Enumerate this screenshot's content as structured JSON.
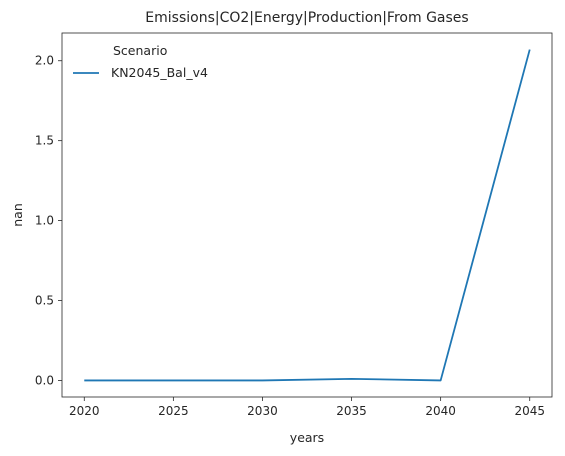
{
  "chart_data": {
    "type": "line",
    "title": "Emissions|CO2|Energy|Production|From Gases",
    "xlabel": "years",
    "ylabel": "nan",
    "x": [
      2020,
      2025,
      2030,
      2035,
      2040,
      2045
    ],
    "series": [
      {
        "name": "KN2045_Bal_v4",
        "values": [
          0.0,
          0.0,
          0.0,
          0.01,
          0.0,
          2.07
        ],
        "color": "#1f77b4"
      }
    ],
    "xlim": [
      2018.75,
      2046.25
    ],
    "ylim": [
      -0.1035,
      2.1735
    ],
    "xticks": [
      "2020",
      "2025",
      "2030",
      "2035",
      "2040",
      "2045"
    ],
    "yticks": [
      "0.0",
      "0.5",
      "1.0",
      "1.5",
      "2.0"
    ],
    "legend": {
      "title": "Scenario",
      "placement": "top-left"
    },
    "grid": false
  }
}
